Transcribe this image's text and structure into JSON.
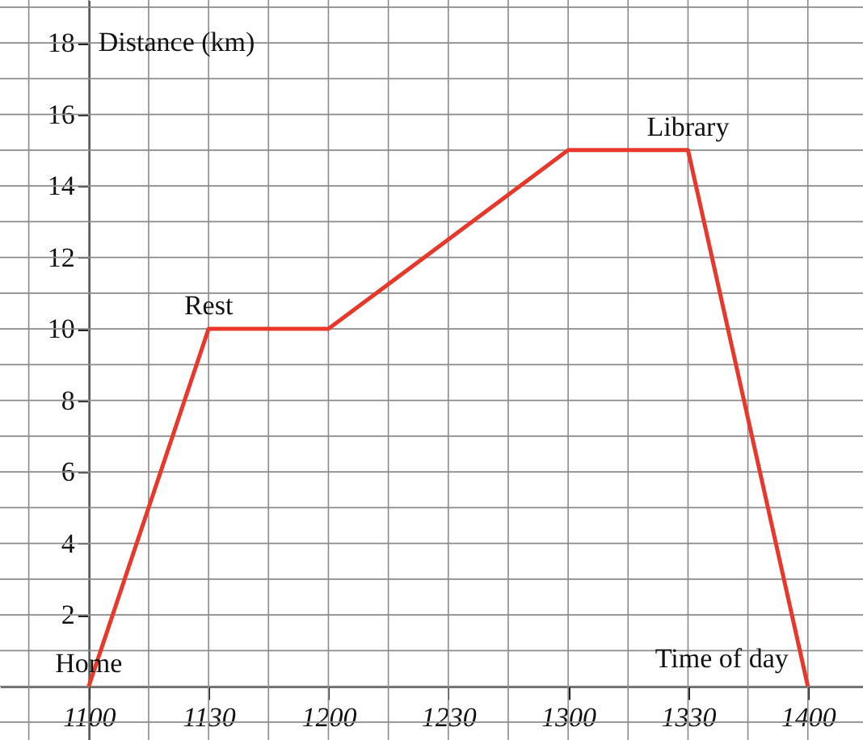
{
  "chart_data": {
    "type": "line",
    "xlabel": "Time of day",
    "ylabel": "Distance (km)",
    "categories": [
      "1100",
      "1130",
      "1200",
      "1230",
      "1300",
      "1330",
      "1400"
    ],
    "series": [
      {
        "color": "#e8382b",
        "values": [
          0,
          10,
          10,
          12.5,
          15,
          15,
          0
        ]
      }
    ],
    "ylim": [
      -1.5,
      19.2
    ],
    "yticks": [
      2,
      4,
      6,
      8,
      10,
      12,
      14,
      16,
      18
    ],
    "annotations": [
      {
        "text": "Home",
        "x": "1100",
        "y": 0
      },
      {
        "text": "Rest",
        "x": "1130",
        "y": 10
      },
      {
        "text": "Library",
        "x": "1330",
        "y": 15
      }
    ],
    "grid": true,
    "marker": "none",
    "line_style": "solid"
  }
}
